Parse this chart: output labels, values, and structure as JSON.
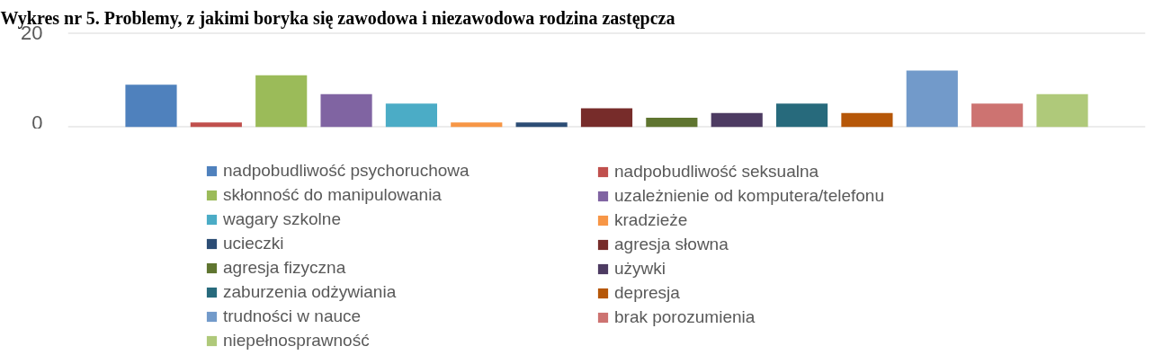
{
  "chart_data": {
    "type": "bar",
    "title": "Wykres nr 5. Problemy, z jakimi boryka się zawodowa i niezawodowa rodzina zastępcza",
    "categories": [
      null
    ],
    "series": [
      {
        "name": "nadpobudliwość psychoruchowa",
        "color": "#4f81bd",
        "values": [
          9
        ]
      },
      {
        "name": "nadpobudliwość seksualna",
        "color": "#c0504d",
        "values": [
          1
        ]
      },
      {
        "name": "skłonność do manipulowania",
        "color": "#9bbb59",
        "values": [
          11
        ]
      },
      {
        "name": "uzależnienie od komputera/telefonu",
        "color": "#8064a2",
        "values": [
          7
        ]
      },
      {
        "name": "wagary szkolne",
        "color": "#4bacc6",
        "values": [
          5
        ]
      },
      {
        "name": "kradzieże",
        "color": "#f79646",
        "values": [
          1
        ]
      },
      {
        "name": "ucieczki",
        "color": "#2c4d75",
        "values": [
          1
        ]
      },
      {
        "name": "agresja słowna",
        "color": "#772c2a",
        "values": [
          4
        ]
      },
      {
        "name": "agresja fizyczna",
        "color": "#5f7530",
        "values": [
          2
        ]
      },
      {
        "name": "używki",
        "color": "#4d3b62",
        "values": [
          3
        ]
      },
      {
        "name": "zaburzenia odżywiania",
        "color": "#276a7c",
        "values": [
          5
        ]
      },
      {
        "name": "depresja",
        "color": "#b65708",
        "values": [
          3
        ]
      },
      {
        "name": "trudności w nauce",
        "color": "#729aca",
        "values": [
          12
        ]
      },
      {
        "name": "brak porozumienia",
        "color": "#cd7371",
        "values": [
          5
        ]
      },
      {
        "name": "niepełnosprawność",
        "color": "#afc97a",
        "values": [
          7
        ]
      }
    ],
    "ylim": [
      0,
      20
    ],
    "yticks": [
      0,
      20
    ],
    "grid": "y",
    "legend": "bottom",
    "tick_labels": "y"
  }
}
